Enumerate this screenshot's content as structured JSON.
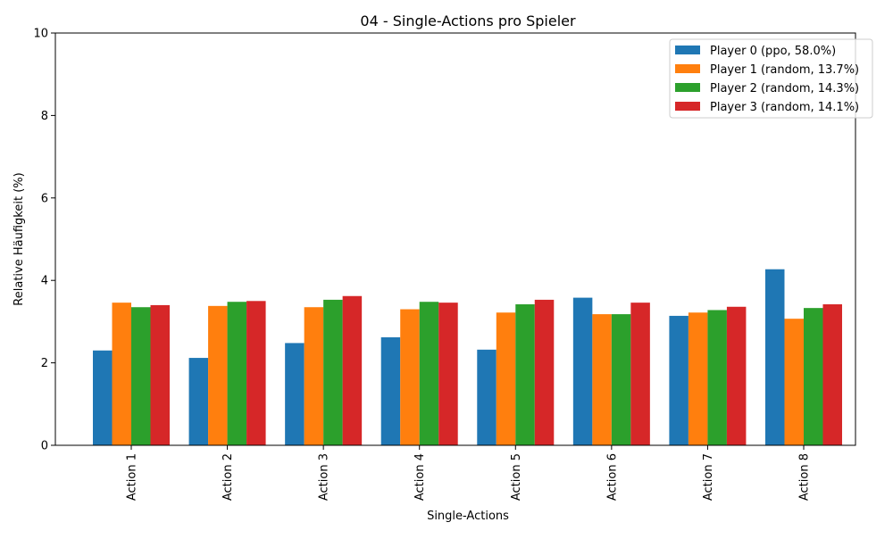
{
  "chart_data": {
    "type": "bar",
    "title": "04 - Single-Actions pro Spieler",
    "xlabel": "Single-Actions",
    "ylabel": "Relative Häufigkeit (%)",
    "ylim": [
      0,
      10
    ],
    "yticks": [
      0,
      2,
      4,
      6,
      8,
      10
    ],
    "grid": false,
    "legend_position": "top-right",
    "categories": [
      "Action 1",
      "Action 2",
      "Action 3",
      "Action 4",
      "Action 5",
      "Action 6",
      "Action 7",
      "Action 8"
    ],
    "series": [
      {
        "name": "Player 0 (ppo, 58.0%)",
        "color": "#1f77b4",
        "values": [
          2.3,
          2.12,
          2.48,
          2.62,
          2.32,
          3.58,
          3.14,
          4.27
        ]
      },
      {
        "name": "Player 1 (random, 13.7%)",
        "color": "#ff7f0e",
        "values": [
          3.46,
          3.38,
          3.35,
          3.3,
          3.22,
          3.18,
          3.22,
          3.07
        ]
      },
      {
        "name": "Player 2 (random, 14.3%)",
        "color": "#2ca02c",
        "values": [
          3.35,
          3.48,
          3.53,
          3.48,
          3.42,
          3.18,
          3.28,
          3.33
        ]
      },
      {
        "name": "Player 3 (random, 14.1%)",
        "color": "#d62728",
        "values": [
          3.4,
          3.5,
          3.62,
          3.46,
          3.53,
          3.46,
          3.36,
          3.42
        ]
      }
    ]
  }
}
